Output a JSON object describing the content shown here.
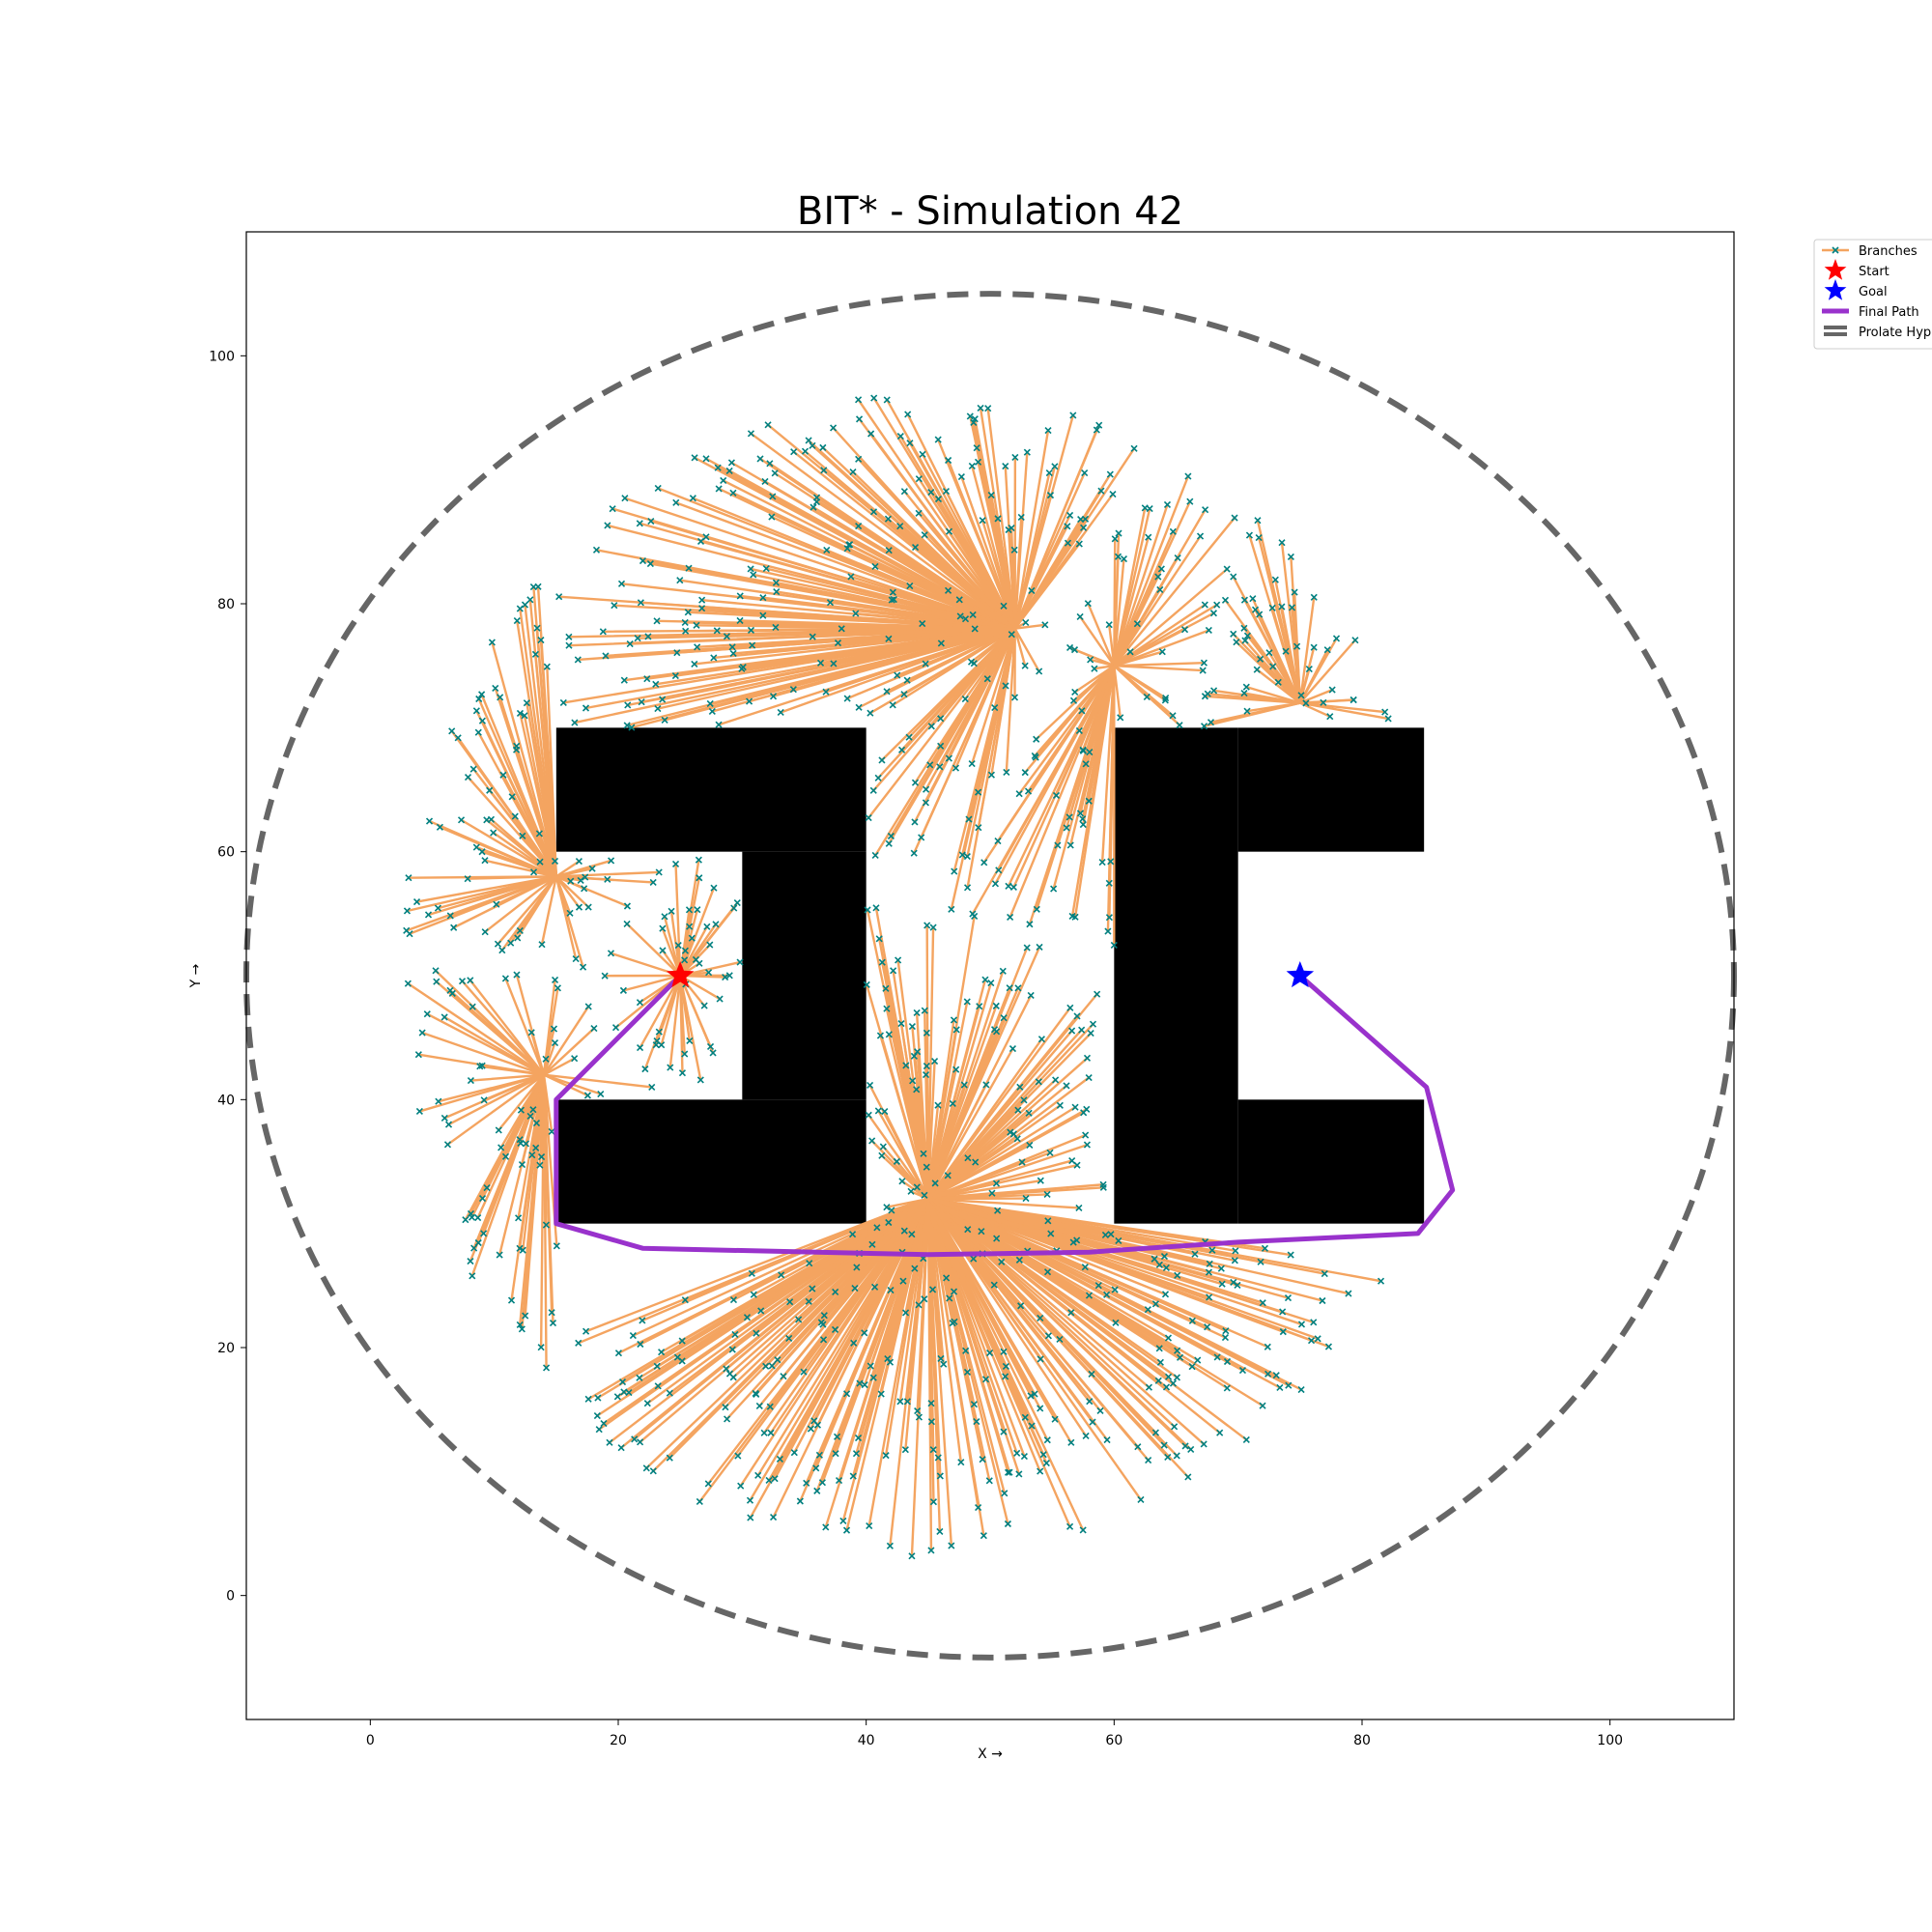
{
  "chart_data": {
    "type": "scatter",
    "title": "BIT* - Simulation 42",
    "xlabel": "X →",
    "ylabel": "Y →",
    "xlim": [
      -10,
      110
    ],
    "ylim": [
      -10,
      110
    ],
    "xticks": [
      0,
      20,
      40,
      60,
      80,
      100
    ],
    "yticks": [
      0,
      20,
      40,
      60,
      80,
      100
    ],
    "grid": false,
    "legend_position": "outside top-right",
    "legend": [
      {
        "label": "Branches",
        "kind": "branches"
      },
      {
        "label": "Start",
        "kind": "start"
      },
      {
        "label": "Goal",
        "kind": "goal"
      },
      {
        "label": "Final Path",
        "kind": "path"
      },
      {
        "label": "Prolate Hyp",
        "kind": "ellipse"
      }
    ],
    "colors": {
      "branch": "#f4a460",
      "node": "#008080",
      "start": "#ff0000",
      "goal": "#0000ff",
      "path": "#9932cc",
      "ellipse": "#666666",
      "obstacle": "#000000"
    },
    "start": [
      25,
      50
    ],
    "goal": [
      75,
      50
    ],
    "obstacles": [
      {
        "x": 15,
        "y": 60,
        "w": 25,
        "h": 10
      },
      {
        "x": 30,
        "y": 40,
        "w": 10,
        "h": 20
      },
      {
        "x": 15,
        "y": 30,
        "w": 25,
        "h": 10
      },
      {
        "x": 60,
        "y": 30,
        "w": 10,
        "h": 40
      },
      {
        "x": 70,
        "y": 60,
        "w": 15,
        "h": 10
      },
      {
        "x": 70,
        "y": 30,
        "w": 15,
        "h": 10
      }
    ],
    "final_path": [
      [
        25,
        50
      ],
      [
        15,
        40
      ],
      [
        15,
        30
      ],
      [
        22,
        28
      ],
      [
        45,
        27.5
      ],
      [
        58,
        27.7
      ],
      [
        70,
        28.5
      ],
      [
        84.5,
        29.2
      ],
      [
        87.3,
        32.7
      ],
      [
        85.2,
        41
      ],
      [
        75,
        50
      ]
    ],
    "ellipse": {
      "cx": 50,
      "cy": 50,
      "rx": 60,
      "ry": 55
    },
    "branch_hubs": [
      [
        25,
        50
      ],
      [
        15,
        30
      ],
      [
        15,
        70
      ],
      [
        40,
        70
      ],
      [
        40,
        30
      ],
      [
        45,
        32
      ],
      [
        40,
        49
      ],
      [
        14,
        42
      ],
      [
        15,
        58
      ],
      [
        60,
        75
      ],
      [
        52,
        78
      ],
      [
        75,
        72
      ]
    ],
    "branch_count": 1000,
    "sample_region": {
      "cx": 45,
      "cy": 50,
      "rx": 43,
      "ry": 47
    }
  }
}
